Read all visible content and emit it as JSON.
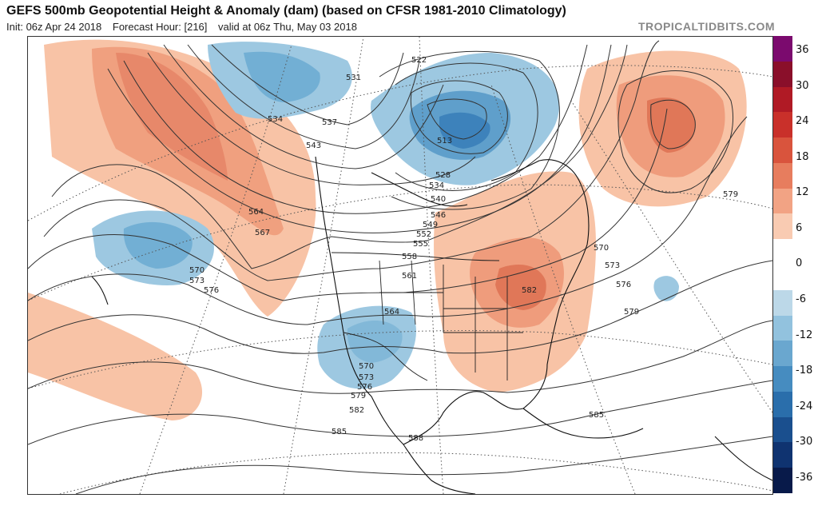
{
  "header": {
    "title": "GEFS 500mb Geopotential Height & Anomaly (dam) (based on CFSR 1981-2010 Climatology)",
    "init": "Init: 06z Apr 24 2018",
    "forecast": "Forecast Hour: [216]",
    "valid": "valid at 06z Thu, May 03 2018",
    "brand": "TROPICALTIDBITS.COM"
  },
  "colorbar": {
    "labels": [
      "36",
      "30",
      "24",
      "18",
      "12",
      "6",
      "0",
      "-6",
      "-12",
      "-18",
      "-24",
      "-30",
      "-36"
    ],
    "colors": [
      "#7b0a6e",
      "#8a0f2a",
      "#b01a25",
      "#c9302a",
      "#d9543d",
      "#e77d5e",
      "#f2a384",
      "#f9cbb2",
      "#ffffff",
      "#ffffff",
      "#bcd8e8",
      "#92c2de",
      "#6aa7cf",
      "#468cc0",
      "#2a6eab",
      "#1a4f8e",
      "#0f3370",
      "#081a4a"
    ]
  },
  "contour_labels": [
    {
      "id": "522",
      "text": "522"
    },
    {
      "id": "513",
      "text": "513"
    },
    {
      "id": "528",
      "text": "528"
    },
    {
      "id": "531",
      "text": "531"
    },
    {
      "id": "534a",
      "text": "534"
    },
    {
      "id": "534b",
      "text": "534"
    },
    {
      "id": "537",
      "text": "537"
    },
    {
      "id": "540",
      "text": "540"
    },
    {
      "id": "543",
      "text": "543"
    },
    {
      "id": "546",
      "text": "546"
    },
    {
      "id": "549",
      "text": "549"
    },
    {
      "id": "552",
      "text": "552"
    },
    {
      "id": "555",
      "text": "555"
    },
    {
      "id": "558",
      "text": "558"
    },
    {
      "id": "561",
      "text": "561"
    },
    {
      "id": "564a",
      "text": "564"
    },
    {
      "id": "564b",
      "text": "564"
    },
    {
      "id": "567",
      "text": "567"
    },
    {
      "id": "570a",
      "text": "570"
    },
    {
      "id": "570b",
      "text": "570"
    },
    {
      "id": "570c",
      "text": "570"
    },
    {
      "id": "573a",
      "text": "573"
    },
    {
      "id": "573b",
      "text": "573"
    },
    {
      "id": "573c",
      "text": "573"
    },
    {
      "id": "576a",
      "text": "576"
    },
    {
      "id": "576b",
      "text": "576"
    },
    {
      "id": "576c",
      "text": "576"
    },
    {
      "id": "579a",
      "text": "579"
    },
    {
      "id": "579b",
      "text": "579"
    },
    {
      "id": "579c",
      "text": "579"
    },
    {
      "id": "582a",
      "text": "582"
    },
    {
      "id": "582b",
      "text": "582"
    },
    {
      "id": "585a",
      "text": "585"
    },
    {
      "id": "585b",
      "text": "585"
    },
    {
      "id": "588",
      "text": "588"
    }
  ]
}
